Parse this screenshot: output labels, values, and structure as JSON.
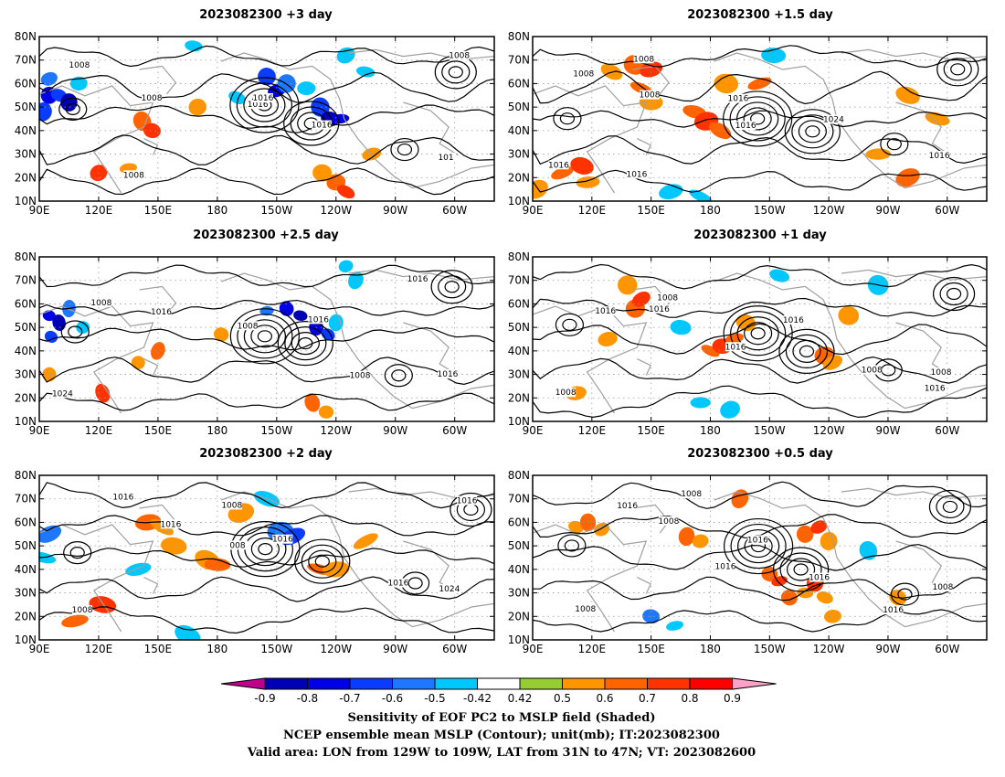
{
  "panels": [
    {
      "title": "2023082300 +3 day",
      "contour_labels": [
        "1008",
        "1016",
        "1008",
        "1008",
        "1016",
        "1008",
        "1016",
        "101"
      ],
      "cells": [
        {
          "lon": 95,
          "lat": 55,
          "v": -0.8
        },
        {
          "lon": 100,
          "lat": 55,
          "v": -0.7
        },
        {
          "lon": 105,
          "lat": 52,
          "v": -0.9
        },
        {
          "lon": 95,
          "lat": 62,
          "v": -0.6
        },
        {
          "lon": 92,
          "lat": 48,
          "v": -0.7
        },
        {
          "lon": 110,
          "lat": 60,
          "v": -0.5
        },
        {
          "lon": 142,
          "lat": 44,
          "v": 0.6
        },
        {
          "lon": 147,
          "lat": 40,
          "v": 0.7
        },
        {
          "lon": 135,
          "lat": 24,
          "v": 0.5
        },
        {
          "lon": 120,
          "lat": 22,
          "v": 0.7
        },
        {
          "lon": 168,
          "lat": 76,
          "v": -0.5
        },
        {
          "lon": 170,
          "lat": 50,
          "v": 0.5
        },
        {
          "lon": 190,
          "lat": 54,
          "v": -0.5
        },
        {
          "lon": 205,
          "lat": 63,
          "v": -0.7
        },
        {
          "lon": 210,
          "lat": 57,
          "v": -0.8
        },
        {
          "lon": 215,
          "lat": 60,
          "v": -0.6
        },
        {
          "lon": 225,
          "lat": 58,
          "v": -0.5
        },
        {
          "lon": 232,
          "lat": 50,
          "v": -0.7
        },
        {
          "lon": 237,
          "lat": 45,
          "v": -0.9
        },
        {
          "lon": 242,
          "lat": 45,
          "v": -0.8
        },
        {
          "lon": 245,
          "lat": 72,
          "v": -0.5
        },
        {
          "lon": 255,
          "lat": 65,
          "v": -0.5
        },
        {
          "lon": 240,
          "lat": 18,
          "v": 0.6
        },
        {
          "lon": 245,
          "lat": 14,
          "v": 0.7
        },
        {
          "lon": 233,
          "lat": 22,
          "v": 0.5
        },
        {
          "lon": 258,
          "lat": 30,
          "v": 0.5
        }
      ]
    },
    {
      "title": "2023082300 +1.5 day",
      "contour_labels": [
        "1008",
        "1016",
        "1016",
        "1008",
        "1024",
        "1016",
        "1016",
        "1016",
        "1008"
      ],
      "cells": [
        {
          "lon": 130,
          "lat": 65,
          "v": 0.5
        },
        {
          "lon": 142,
          "lat": 68,
          "v": 0.6
        },
        {
          "lon": 150,
          "lat": 66,
          "v": 0.7
        },
        {
          "lon": 145,
          "lat": 58,
          "v": 0.6
        },
        {
          "lon": 150,
          "lat": 52,
          "v": 0.5
        },
        {
          "lon": 105,
          "lat": 22,
          "v": 0.6
        },
        {
          "lon": 115,
          "lat": 25,
          "v": 0.7
        },
        {
          "lon": 118,
          "lat": 18,
          "v": 0.5
        },
        {
          "lon": 92,
          "lat": 15,
          "v": 0.5
        },
        {
          "lon": 172,
          "lat": 48,
          "v": 0.6
        },
        {
          "lon": 178,
          "lat": 44,
          "v": 0.7
        },
        {
          "lon": 185,
          "lat": 40,
          "v": 0.6
        },
        {
          "lon": 188,
          "lat": 60,
          "v": 0.5
        },
        {
          "lon": 160,
          "lat": 14,
          "v": -0.5
        },
        {
          "lon": 175,
          "lat": 12,
          "v": -0.5
        },
        {
          "lon": 212,
          "lat": 72,
          "v": -0.5
        },
        {
          "lon": 205,
          "lat": 60,
          "v": 0.6
        },
        {
          "lon": 280,
          "lat": 55,
          "v": 0.5
        },
        {
          "lon": 265,
          "lat": 30,
          "v": 0.5
        },
        {
          "lon": 280,
          "lat": 20,
          "v": 0.6
        },
        {
          "lon": 295,
          "lat": 45,
          "v": 0.5
        }
      ]
    },
    {
      "title": "2023082300 +2.5 day",
      "contour_labels": [
        "1008",
        "1008",
        "1016",
        "1016",
        "1008",
        "1024",
        "1016",
        "1016"
      ],
      "cells": [
        {
          "lon": 95,
          "lat": 55,
          "v": -0.8
        },
        {
          "lon": 100,
          "lat": 52,
          "v": -0.9
        },
        {
          "lon": 96,
          "lat": 46,
          "v": -0.7
        },
        {
          "lon": 105,
          "lat": 58,
          "v": -0.6
        },
        {
          "lon": 112,
          "lat": 50,
          "v": -0.5
        },
        {
          "lon": 150,
          "lat": 40,
          "v": 0.6
        },
        {
          "lon": 140,
          "lat": 35,
          "v": 0.5
        },
        {
          "lon": 122,
          "lat": 22,
          "v": 0.7
        },
        {
          "lon": 95,
          "lat": 30,
          "v": 0.5
        },
        {
          "lon": 205,
          "lat": 57,
          "v": -0.6
        },
        {
          "lon": 215,
          "lat": 58,
          "v": -0.8
        },
        {
          "lon": 222,
          "lat": 55,
          "v": -0.9
        },
        {
          "lon": 230,
          "lat": 50,
          "v": -0.8
        },
        {
          "lon": 236,
          "lat": 47,
          "v": -0.7
        },
        {
          "lon": 240,
          "lat": 52,
          "v": -0.5
        },
        {
          "lon": 245,
          "lat": 76,
          "v": -0.5
        },
        {
          "lon": 250,
          "lat": 70,
          "v": -0.5
        },
        {
          "lon": 235,
          "lat": 14,
          "v": 0.5
        },
        {
          "lon": 228,
          "lat": 18,
          "v": 0.6
        },
        {
          "lon": 182,
          "lat": 47,
          "v": 0.5
        }
      ]
    },
    {
      "title": "2023082300 +1 day",
      "contour_labels": [
        "1016",
        "1016",
        "1016",
        "1016",
        "1008",
        "1008",
        "1016",
        "1008",
        "1008"
      ],
      "cells": [
        {
          "lon": 142,
          "lat": 58,
          "v": 0.6
        },
        {
          "lon": 145,
          "lat": 62,
          "v": 0.7
        },
        {
          "lon": 138,
          "lat": 68,
          "v": 0.5
        },
        {
          "lon": 128,
          "lat": 45,
          "v": 0.5
        },
        {
          "lon": 180,
          "lat": 40,
          "v": 0.6
        },
        {
          "lon": 186,
          "lat": 42,
          "v": 0.7
        },
        {
          "lon": 192,
          "lat": 45,
          "v": 0.6
        },
        {
          "lon": 198,
          "lat": 52,
          "v": 0.5
        },
        {
          "lon": 175,
          "lat": 18,
          "v": -0.5
        },
        {
          "lon": 190,
          "lat": 15,
          "v": -0.5
        },
        {
          "lon": 215,
          "lat": 72,
          "v": -0.5
        },
        {
          "lon": 238,
          "lat": 38,
          "v": 0.6
        },
        {
          "lon": 242,
          "lat": 35,
          "v": 0.5
        },
        {
          "lon": 250,
          "lat": 55,
          "v": 0.5
        },
        {
          "lon": 112,
          "lat": 22,
          "v": 0.5
        },
        {
          "lon": 265,
          "lat": 68,
          "v": -0.5
        },
        {
          "lon": 165,
          "lat": 50,
          "v": -0.5
        }
      ]
    },
    {
      "title": "2023082300 +2 day",
      "contour_labels": [
        "1016",
        "008",
        "1016",
        "1016",
        "1016",
        "1008",
        "1016",
        "1024",
        "1008"
      ],
      "cells": [
        {
          "lon": 95,
          "lat": 55,
          "v": -0.6
        },
        {
          "lon": 92,
          "lat": 45,
          "v": -0.5
        },
        {
          "lon": 145,
          "lat": 60,
          "v": 0.6
        },
        {
          "lon": 152,
          "lat": 58,
          "v": 0.5
        },
        {
          "lon": 158,
          "lat": 50,
          "v": 0.5
        },
        {
          "lon": 140,
          "lat": 40,
          "v": -0.5
        },
        {
          "lon": 175,
          "lat": 44,
          "v": 0.5
        },
        {
          "lon": 180,
          "lat": 42,
          "v": 0.6
        },
        {
          "lon": 192,
          "lat": 64,
          "v": 0.5
        },
        {
          "lon": 205,
          "lat": 70,
          "v": -0.5
        },
        {
          "lon": 212,
          "lat": 56,
          "v": -0.6
        },
        {
          "lon": 218,
          "lat": 54,
          "v": -0.7
        },
        {
          "lon": 232,
          "lat": 40,
          "v": 0.6
        },
        {
          "lon": 240,
          "lat": 40,
          "v": 0.5
        },
        {
          "lon": 255,
          "lat": 52,
          "v": 0.5
        },
        {
          "lon": 122,
          "lat": 25,
          "v": 0.7
        },
        {
          "lon": 108,
          "lat": 18,
          "v": 0.6
        },
        {
          "lon": 165,
          "lat": 12,
          "v": -0.5
        }
      ]
    },
    {
      "title": "2023082300 +0.5 day",
      "contour_labels": [
        "1016",
        "1016",
        "1016",
        "1008",
        "1016",
        "1008",
        "1016",
        "1008",
        "1008"
      ],
      "cells": [
        {
          "lon": 112,
          "lat": 58,
          "v": 0.5
        },
        {
          "lon": 118,
          "lat": 60,
          "v": 0.6
        },
        {
          "lon": 125,
          "lat": 57,
          "v": 0.5
        },
        {
          "lon": 168,
          "lat": 54,
          "v": 0.6
        },
        {
          "lon": 175,
          "lat": 52,
          "v": 0.5
        },
        {
          "lon": 195,
          "lat": 70,
          "v": 0.6
        },
        {
          "lon": 210,
          "lat": 38,
          "v": 0.6
        },
        {
          "lon": 215,
          "lat": 35,
          "v": 0.7
        },
        {
          "lon": 220,
          "lat": 28,
          "v": 0.6
        },
        {
          "lon": 228,
          "lat": 30,
          "v": 0.5
        },
        {
          "lon": 233,
          "lat": 34,
          "v": 0.7
        },
        {
          "lon": 238,
          "lat": 28,
          "v": 0.5
        },
        {
          "lon": 228,
          "lat": 55,
          "v": 0.6
        },
        {
          "lon": 235,
          "lat": 58,
          "v": 0.7
        },
        {
          "lon": 240,
          "lat": 52,
          "v": 0.5
        },
        {
          "lon": 242,
          "lat": 20,
          "v": 0.5
        },
        {
          "lon": 260,
          "lat": 48,
          "v": -0.5
        },
        {
          "lon": 150,
          "lat": 20,
          "v": -0.6
        },
        {
          "lon": 162,
          "lat": 16,
          "v": -0.5
        },
        {
          "lon": 275,
          "lat": 28,
          "v": 0.5
        }
      ]
    }
  ],
  "axes": {
    "lon_ticks": [
      "90E",
      "120E",
      "150E",
      "180",
      "150W",
      "120W",
      "90W",
      "60W"
    ],
    "lat_ticks": [
      "10N",
      "20N",
      "30N",
      "40N",
      "50N",
      "60N",
      "70N",
      "80N"
    ],
    "lon_range_deg": [
      90,
      320
    ],
    "lat_range_deg": [
      10,
      80
    ]
  },
  "colorbar": {
    "labels": [
      "-0.9",
      "-0.8",
      "-0.7",
      "-0.6",
      "-0.5",
      "-0.42",
      "0.42",
      "0.5",
      "0.6",
      "0.7",
      "0.8",
      "0.9"
    ],
    "colors": [
      "#c0008c",
      "#0000b4",
      "#0000e6",
      "#0a3cff",
      "#1e78ff",
      "#00c8ff",
      "#ffffff",
      "#96cd32",
      "#ff9600",
      "#ff6400",
      "#ff3200",
      "#ff0000",
      "#ffa0c8"
    ],
    "levels": [
      -0.9,
      -0.8,
      -0.7,
      -0.6,
      -0.5,
      -0.42,
      0.42,
      0.5,
      0.6,
      0.7,
      0.8,
      0.9
    ]
  },
  "caption": {
    "line1": "Sensitivity of EOF PC2 to MSLP field (Shaded)",
    "line2": "NCEP ensemble mean MSLP (Contour); unit(mb); IT:2023082300",
    "line3": "Valid area: LON from 129W to 109W, LAT from 31N to 47N; VT: 2023082600"
  },
  "style": {
    "contour_color": "#000000",
    "coast_color": "#a0a0a0",
    "grid_color": "#9a9a9a"
  }
}
